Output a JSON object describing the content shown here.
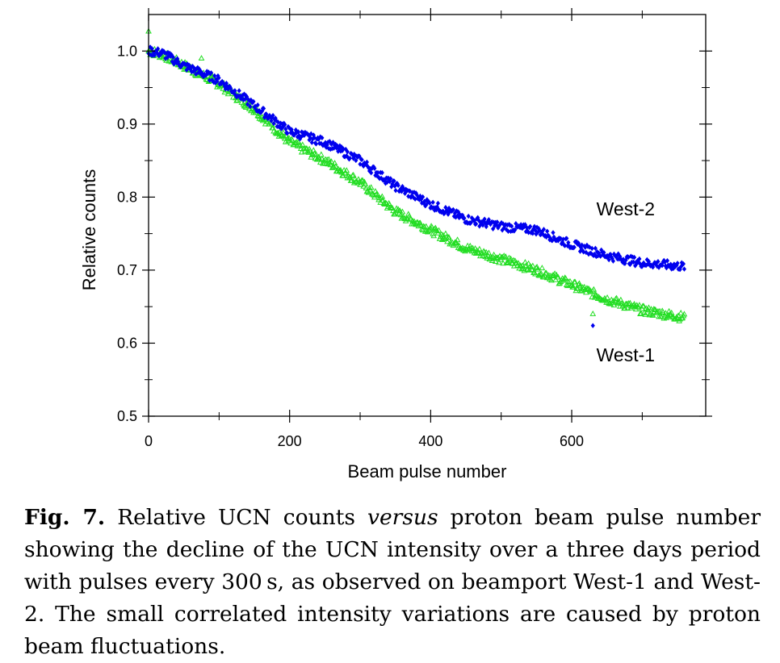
{
  "chart_data": {
    "type": "scatter",
    "title": "",
    "xlabel": "Beam pulse number",
    "ylabel": "Relative counts",
    "xlim": [
      0,
      790
    ],
    "ylim": [
      0.5,
      1.05
    ],
    "x_ticks": [
      "0",
      "200",
      "400",
      "600"
    ],
    "y_ticks": [
      "0.5",
      "0.6",
      "0.7",
      "0.8",
      "0.9",
      "1.0"
    ],
    "grid": false,
    "legend": "none",
    "series": [
      {
        "name": "West-2",
        "color": "#0000ee",
        "marker": "diamond",
        "anchors_x": [
          0,
          20,
          50,
          100,
          150,
          200,
          250,
          300,
          350,
          400,
          450,
          500,
          550,
          600,
          650,
          700,
          760
        ],
        "anchors_y": [
          1.0,
          0.997,
          0.98,
          0.96,
          0.925,
          0.89,
          0.875,
          0.85,
          0.815,
          0.79,
          0.77,
          0.76,
          0.755,
          0.735,
          0.72,
          0.71,
          0.705
        ],
        "outliers": [
          [
            630,
            0.624
          ]
        ]
      },
      {
        "name": "West-1",
        "color": "#22dd22",
        "marker": "triangle-open",
        "anchors_x": [
          0,
          20,
          50,
          100,
          150,
          200,
          250,
          300,
          350,
          400,
          450,
          500,
          550,
          600,
          650,
          700,
          760
        ],
        "anchors_y": [
          1.0,
          0.995,
          0.98,
          0.955,
          0.92,
          0.875,
          0.85,
          0.82,
          0.78,
          0.755,
          0.73,
          0.715,
          0.7,
          0.68,
          0.66,
          0.645,
          0.635
        ],
        "outliers": [
          [
            0,
            1.027
          ],
          [
            75,
            0.99
          ],
          [
            630,
            0.64
          ]
        ]
      }
    ],
    "annotations": [
      {
        "text": "West-2",
        "x": 635,
        "y": 0.775
      },
      {
        "text": "West-1",
        "x": 635,
        "y": 0.575
      }
    ]
  },
  "caption": {
    "fig_label": "Fig. 7.",
    "text_1": " Relative UCN counts ",
    "emph": "versus",
    "text_2": " proton beam pulse number showing the decline of the UCN intensity over a three days period with pulses every 300 s, as observed on beamport West-1 and West-2. The small correlated intensity variations are caused by proton beam fluctuations."
  }
}
